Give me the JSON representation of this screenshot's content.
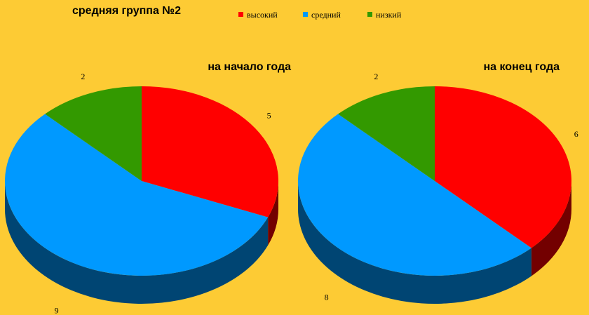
{
  "title": "средняя группа №2",
  "chart_data": [
    {
      "type": "pie",
      "title": "на начало года",
      "categories": [
        "высокий",
        "средний",
        "низкий"
      ],
      "values": [
        5,
        9,
        2
      ],
      "colors": [
        "#ff0000",
        "#0099ff",
        "#339900"
      ]
    },
    {
      "type": "pie",
      "title": "на конец года",
      "categories": [
        "высокий",
        "средний",
        "низкий"
      ],
      "values": [
        6,
        8,
        2
      ],
      "colors": [
        "#ff0000",
        "#0099ff",
        "#339900"
      ]
    }
  ]
}
